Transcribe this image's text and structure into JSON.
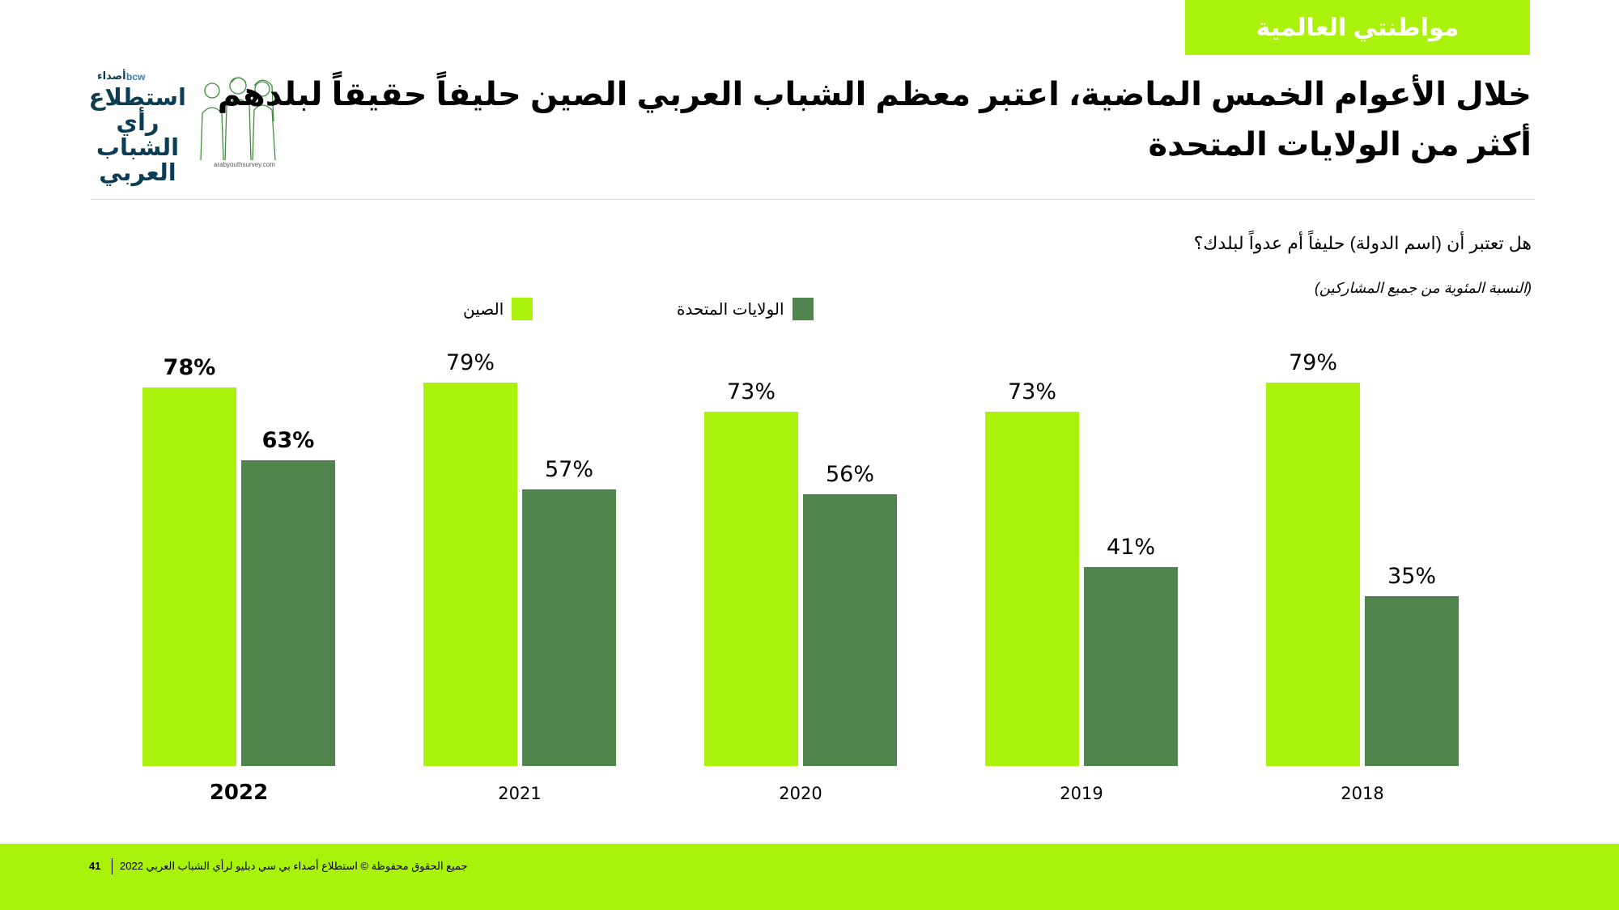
{
  "section_tag": "مواطنتي العالمية",
  "headline": {
    "line1": "خلال الأعوام الخمس الماضية، اعتبر معظم الشباب العربي الصين حليفاً حقيقاً لبلدهم",
    "line2": "أكثر من الولايات المتحدة"
  },
  "logo": {
    "brand": "أصداء",
    "bcw": "bcw",
    "line1": "استطلاع",
    "line2": "رأي الشباب",
    "line3": "العربي",
    "url": "arabyouthsurvey.com"
  },
  "question": "هل تعتبر أن (اسم الدولة) حليفاً أم عدواً لبلدك؟",
  "base_note": "(النسبة المئوية من جميع المشاركين)",
  "colors": {
    "accent": "#aaf20c",
    "china": "#aaf20c",
    "usa": "#50854e"
  },
  "chart_data": {
    "type": "bar",
    "categories": [
      "2022",
      "2021",
      "2020",
      "2019",
      "2018"
    ],
    "highlight_category": "2022",
    "series": [
      {
        "name": "الصين",
        "values": [
          78,
          79,
          73,
          73,
          79
        ]
      },
      {
        "name": "الولايات المتحدة",
        "values": [
          63,
          57,
          56,
          41,
          35
        ]
      }
    ],
    "value_suffix": "%",
    "ylim": [
      0,
      100
    ],
    "grid": false,
    "legend_position": "top"
  },
  "footer": {
    "page_number": "41",
    "copyright": "جميع الحقوق محفوظة © استطلاع أصداء بي سي دبليو لرأي الشباب العربي 2022"
  }
}
